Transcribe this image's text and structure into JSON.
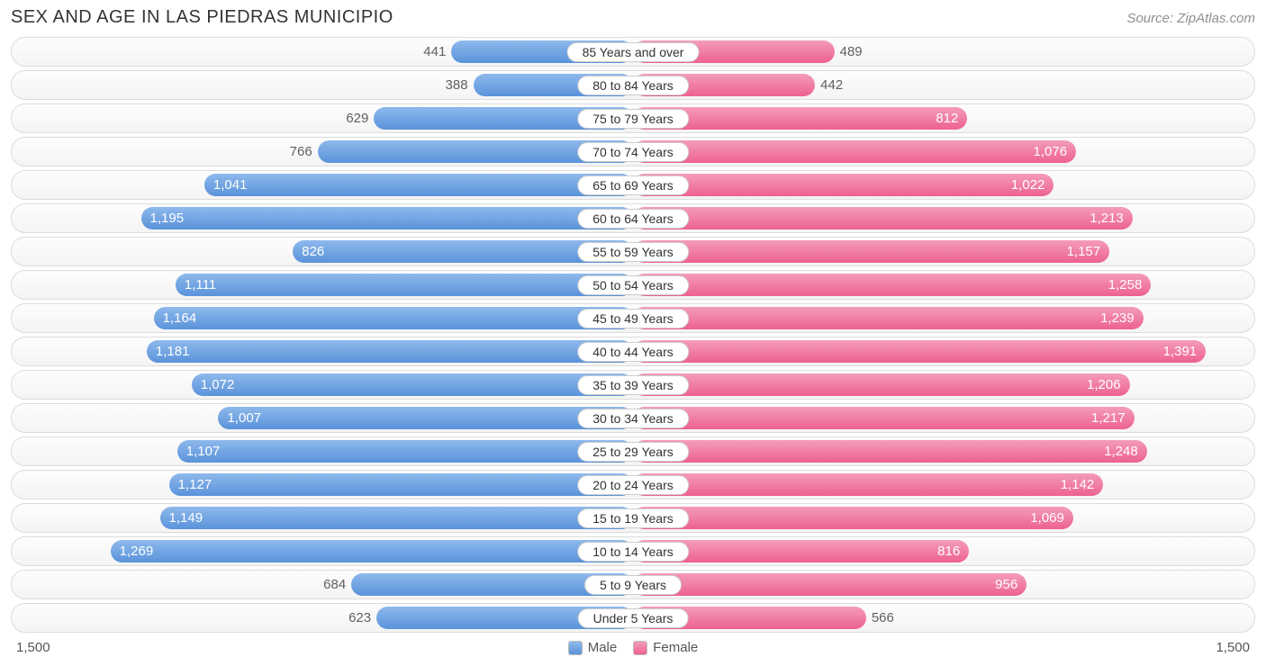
{
  "title": "SEX AND AGE IN LAS PIEDRAS MUNICIPIO",
  "source": "Source: ZipAtlas.com",
  "axis_max": 1500,
  "axis_left_label": "1,500",
  "axis_right_label": "1,500",
  "colors": {
    "male_top": "#8eb9ec",
    "male_bottom": "#5a93da",
    "female_top": "#f49cb9",
    "female_bottom": "#ed6191",
    "row_border": "#dcdcdc",
    "text_muted": "#606060",
    "text_title": "#333333"
  },
  "legend": {
    "male": "Male",
    "female": "Female"
  },
  "label_inside_threshold": 800,
  "rows": [
    {
      "age": "85 Years and over",
      "male": 441,
      "male_label": "441",
      "female": 489,
      "female_label": "489"
    },
    {
      "age": "80 to 84 Years",
      "male": 388,
      "male_label": "388",
      "female": 442,
      "female_label": "442"
    },
    {
      "age": "75 to 79 Years",
      "male": 629,
      "male_label": "629",
      "female": 812,
      "female_label": "812"
    },
    {
      "age": "70 to 74 Years",
      "male": 766,
      "male_label": "766",
      "female": 1076,
      "female_label": "1,076"
    },
    {
      "age": "65 to 69 Years",
      "male": 1041,
      "male_label": "1,041",
      "female": 1022,
      "female_label": "1,022"
    },
    {
      "age": "60 to 64 Years",
      "male": 1195,
      "male_label": "1,195",
      "female": 1213,
      "female_label": "1,213"
    },
    {
      "age": "55 to 59 Years",
      "male": 826,
      "male_label": "826",
      "female": 1157,
      "female_label": "1,157"
    },
    {
      "age": "50 to 54 Years",
      "male": 1111,
      "male_label": "1,111",
      "female": 1258,
      "female_label": "1,258"
    },
    {
      "age": "45 to 49 Years",
      "male": 1164,
      "male_label": "1,164",
      "female": 1239,
      "female_label": "1,239"
    },
    {
      "age": "40 to 44 Years",
      "male": 1181,
      "male_label": "1,181",
      "female": 1391,
      "female_label": "1,391"
    },
    {
      "age": "35 to 39 Years",
      "male": 1072,
      "male_label": "1,072",
      "female": 1206,
      "female_label": "1,206"
    },
    {
      "age": "30 to 34 Years",
      "male": 1007,
      "male_label": "1,007",
      "female": 1217,
      "female_label": "1,217"
    },
    {
      "age": "25 to 29 Years",
      "male": 1107,
      "male_label": "1,107",
      "female": 1248,
      "female_label": "1,248"
    },
    {
      "age": "20 to 24 Years",
      "male": 1127,
      "male_label": "1,127",
      "female": 1142,
      "female_label": "1,142"
    },
    {
      "age": "15 to 19 Years",
      "male": 1149,
      "male_label": "1,149",
      "female": 1069,
      "female_label": "1,069"
    },
    {
      "age": "10 to 14 Years",
      "male": 1269,
      "male_label": "1,269",
      "female": 816,
      "female_label": "816"
    },
    {
      "age": "5 to 9 Years",
      "male": 684,
      "male_label": "684",
      "female": 956,
      "female_label": "956"
    },
    {
      "age": "Under 5 Years",
      "male": 623,
      "male_label": "623",
      "female": 566,
      "female_label": "566"
    }
  ]
}
